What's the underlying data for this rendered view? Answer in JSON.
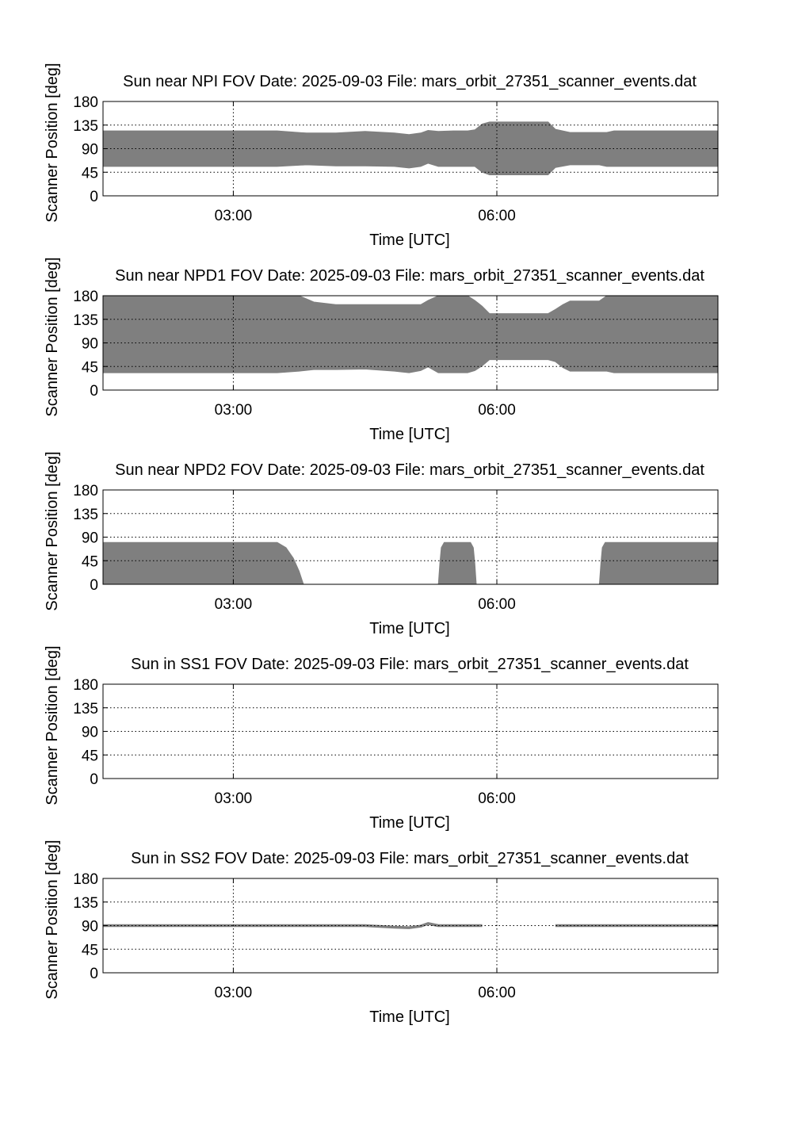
{
  "figure": {
    "background": "#ffffff",
    "fill_color": "#7f7f7f",
    "axis_color": "#000000",
    "grid_color": "#000000"
  },
  "chart_data": [
    {
      "type": "area",
      "title": "Sun near NPI FOV   Date: 2025-09-03   File: mars_orbit_27351_scanner_events.dat",
      "xlabel": "Time [UTC]",
      "ylabel": "Scanner Position [deg]",
      "xlim": [
        "01:31",
        "08:31"
      ],
      "ylim": [
        0,
        180
      ],
      "xticks": [
        "03:00",
        "06:00"
      ],
      "yticks": [
        0,
        45,
        90,
        135,
        180
      ],
      "grid": true,
      "legend": "none",
      "series": [
        {
          "x": [
            "01:31",
            "03:00",
            "03:30",
            "03:50",
            "04:10",
            "04:30",
            "04:50",
            "05:00",
            "05:08",
            "05:13",
            "05:20",
            "05:30",
            "05:40",
            "05:45",
            "05:50",
            "05:55",
            "06:10",
            "06:20",
            "06:30",
            "06:35",
            "06:40",
            "06:50",
            "07:00",
            "07:10",
            "07:15",
            "07:20",
            "07:30",
            "08:00",
            "08:31"
          ],
          "lower": [
            56,
            56,
            56,
            59,
            57,
            57,
            56,
            53,
            56,
            62,
            56,
            56,
            56,
            56,
            45,
            40,
            40,
            40,
            40,
            40,
            54,
            59,
            59,
            59,
            56,
            56,
            56,
            56,
            56
          ],
          "upper": [
            124,
            124,
            124,
            120,
            120,
            123,
            120,
            117,
            120,
            125,
            123,
            124,
            124,
            126,
            137,
            141,
            141,
            141,
            141,
            141,
            127,
            121,
            121,
            121,
            121,
            124,
            124,
            124,
            124
          ]
        }
      ]
    },
    {
      "type": "area",
      "title": "Sun near NPD1 FOV   Date: 2025-09-03   File: mars_orbit_27351_scanner_events.dat",
      "xlabel": "Time [UTC]",
      "ylabel": "Scanner Position [deg]",
      "xlim": [
        "01:31",
        "08:31"
      ],
      "ylim": [
        0,
        180
      ],
      "xticks": [
        "03:00",
        "06:00"
      ],
      "yticks": [
        0,
        45,
        90,
        135,
        180
      ],
      "grid": true,
      "legend": "none",
      "series": [
        {
          "x": [
            "01:31",
            "03:00",
            "03:30",
            "03:45",
            "03:55",
            "04:10",
            "04:30",
            "04:50",
            "05:00",
            "05:08",
            "05:13",
            "05:20",
            "05:30",
            "05:35",
            "05:40",
            "05:45",
            "05:50",
            "05:55",
            "06:30",
            "06:35",
            "06:40",
            "06:45",
            "06:50",
            "07:00",
            "07:10",
            "07:15",
            "07:20",
            "07:30",
            "08:31"
          ],
          "lower": [
            33,
            33,
            33,
            36,
            39,
            39,
            40,
            36,
            33,
            37,
            44,
            33,
            33,
            33,
            33,
            37,
            46,
            58,
            58,
            58,
            54,
            43,
            36,
            36,
            36,
            36,
            33,
            33,
            33
          ],
          "upper": [
            180,
            180,
            180,
            180,
            168,
            163,
            163,
            163,
            163,
            163,
            171,
            180,
            180,
            180,
            180,
            171,
            160,
            146,
            146,
            146,
            154,
            163,
            170,
            170,
            170,
            180,
            180,
            180,
            180
          ]
        }
      ]
    },
    {
      "type": "area",
      "title": "Sun near NPD2 FOV   Date: 2025-09-03   File: mars_orbit_27351_scanner_events.dat",
      "xlabel": "Time [UTC]",
      "ylabel": "Scanner Position [deg]",
      "xlim": [
        "01:31",
        "08:31"
      ],
      "ylim": [
        0,
        180
      ],
      "xticks": [
        "03:00",
        "06:00"
      ],
      "yticks": [
        0,
        45,
        90,
        135,
        180
      ],
      "grid": true,
      "legend": "none",
      "series": [
        {
          "x": [
            "01:31",
            "03:00",
            "03:20",
            "03:30",
            "03:36",
            "03:41",
            "03:45",
            "03:47",
            "03:48",
            "05:20",
            "05:21",
            "05:22",
            "05:24",
            "05:42",
            "05:44",
            "05:45",
            "05:46",
            "07:10",
            "07:11",
            "07:12",
            "07:14",
            "08:31"
          ],
          "lower": [
            0,
            0,
            0,
            0,
            0,
            0,
            0,
            0,
            0,
            0,
            0,
            0,
            0,
            0,
            0,
            0,
            0,
            0,
            0,
            0,
            0,
            0
          ],
          "upper": [
            80,
            80,
            80,
            80,
            70,
            50,
            25,
            8,
            0,
            0,
            40,
            70,
            80,
            80,
            70,
            40,
            0,
            0,
            40,
            70,
            80,
            80
          ]
        }
      ]
    },
    {
      "type": "area",
      "title": "Sun in SS1 FOV   Date: 2025-09-03   File: mars_orbit_27351_scanner_events.dat",
      "xlabel": "Time [UTC]",
      "ylabel": "Scanner Position [deg]",
      "xlim": [
        "01:31",
        "08:31"
      ],
      "ylim": [
        0,
        180
      ],
      "xticks": [
        "03:00",
        "06:00"
      ],
      "yticks": [
        0,
        45,
        90,
        135,
        180
      ],
      "grid": true,
      "legend": "none",
      "series": []
    },
    {
      "type": "line",
      "title": "Sun in SS2 FOV   Date: 2025-09-03   File: mars_orbit_27351_scanner_events.dat",
      "xlabel": "Time [UTC]",
      "ylabel": "Scanner Position [deg]",
      "xlim": [
        "01:31",
        "08:31"
      ],
      "ylim": [
        0,
        180
      ],
      "xticks": [
        "03:00",
        "06:00"
      ],
      "yticks": [
        0,
        45,
        90,
        135,
        180
      ],
      "grid": true,
      "legend": "none",
      "series": [
        {
          "x": [
            "01:31",
            "03:00",
            "04:00",
            "04:30",
            "04:50",
            "05:00",
            "05:08",
            "05:13",
            "05:20",
            "05:50"
          ],
          "y": [
            90,
            90,
            90,
            90,
            87,
            86,
            89,
            94,
            90,
            90
          ]
        },
        {
          "x": [
            "06:40",
            "07:00",
            "08:00",
            "08:31"
          ],
          "y": [
            90,
            90,
            90,
            90
          ]
        }
      ]
    }
  ]
}
